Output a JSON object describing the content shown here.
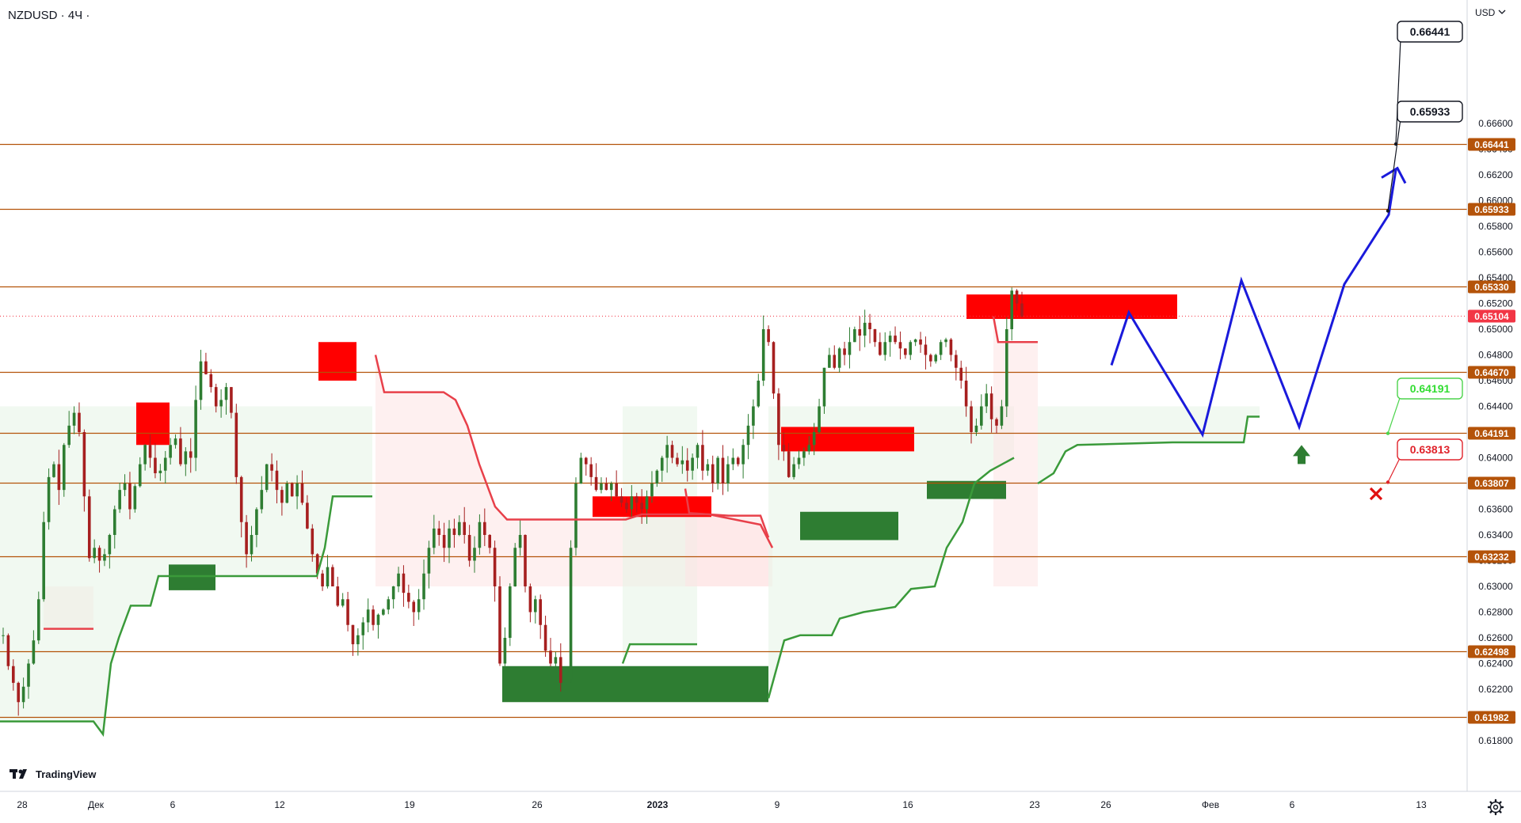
{
  "header": {
    "symbol": "NZDUSD · 4Ч ·"
  },
  "price_axis": {
    "currency": "USD",
    "currency_icon": "chevron-down-icon"
  },
  "brand": {
    "name": "TradingView",
    "icon": "tradingview-logo"
  },
  "toolbar": {
    "settings_icon": "gear-icon"
  },
  "colors": {
    "level_line": "#b45309",
    "bull_candle": "#2e7d32",
    "bear_candle": "#a61f1f",
    "supply_zone": "#ff0000",
    "demand_zone": "#2e7d32",
    "forecast_path": "#1a1adb",
    "trail_down": "#e8404a",
    "trail_up": "#3a9a3a",
    "current_price": "#f23645"
  },
  "chart_data": {
    "type": "candlestick",
    "ylim": [
      0.6172,
      0.6676
    ],
    "y_ticks": [
      "0.66600",
      "0.66400",
      "0.66200",
      "0.66000",
      "0.65800",
      "0.65600",
      "0.65400",
      "0.65200",
      "0.65000",
      "0.64800",
      "0.64600",
      "0.64400",
      "0.64200",
      "0.64000",
      "0.63800",
      "0.63600",
      "0.63400",
      "0.63200",
      "0.63000",
      "0.62800",
      "0.62600",
      "0.62400",
      "0.62200",
      "0.62000",
      "0.61800"
    ],
    "x_ticks": [
      {
        "label": "28",
        "bold": false
      },
      {
        "label": "Дек",
        "bold": false
      },
      {
        "label": "6",
        "bold": false
      },
      {
        "label": "12",
        "bold": false
      },
      {
        "label": "19",
        "bold": false
      },
      {
        "label": "26",
        "bold": false
      },
      {
        "label": "2023",
        "bold": true
      },
      {
        "label": "9",
        "bold": false
      },
      {
        "label": "16",
        "bold": false
      },
      {
        "label": "23",
        "bold": false
      },
      {
        "label": "26",
        "bold": false
      },
      {
        "label": "Фев",
        "bold": false
      },
      {
        "label": "6",
        "bold": false
      },
      {
        "label": "13",
        "bold": false
      }
    ],
    "levels": [
      "0.66441",
      "0.65933",
      "0.65330",
      "0.64670",
      "0.64191",
      "0.63807",
      "0.63232",
      "0.62498",
      "0.61982"
    ],
    "current_price": "0.65104",
    "callouts": [
      {
        "label": "0.66441",
        "style": "black"
      },
      {
        "label": "0.65933",
        "style": "black"
      },
      {
        "label": "0.64191",
        "style": "green"
      },
      {
        "label": "0.63813",
        "style": "red"
      }
    ],
    "price_path": [
      0.6262,
      0.6238,
      0.6225,
      0.621,
      0.6222,
      0.624,
      0.6258,
      0.629,
      0.635,
      0.6385,
      0.6395,
      0.6375,
      0.641,
      0.6425,
      0.6435,
      0.642,
      0.637,
      0.6322,
      0.633,
      0.632,
      0.6325,
      0.634,
      0.636,
      0.6375,
      0.638,
      0.636,
      0.6378,
      0.6395,
      0.641,
      0.64,
      0.6388,
      0.639,
      0.64,
      0.641,
      0.6415,
      0.6395,
      0.6405,
      0.64,
      0.6445,
      0.6475,
      0.6465,
      0.6455,
      0.644,
      0.6445,
      0.6455,
      0.6435,
      0.6385,
      0.635,
      0.6325,
      0.634,
      0.636,
      0.6375,
      0.6395,
      0.639,
      0.6375,
      0.6365,
      0.638,
      0.637,
      0.638,
      0.6365,
      0.6345,
      0.6325,
      0.631,
      0.63,
      0.6315,
      0.63,
      0.6285,
      0.629,
      0.627,
      0.6255,
      0.6262,
      0.6272,
      0.6282,
      0.627,
      0.6278,
      0.6282,
      0.629,
      0.63,
      0.631,
      0.6295,
      0.6288,
      0.628,
      0.629,
      0.631,
      0.633,
      0.6345,
      0.634,
      0.633,
      0.6345,
      0.634,
      0.635,
      0.634,
      0.632,
      0.633,
      0.635,
      0.634,
      0.633,
      0.63,
      0.624,
      0.626,
      0.63,
      0.633,
      0.634,
      0.63,
      0.628,
      0.629,
      0.627,
      0.625,
      0.624,
      0.6245,
      0.6225,
      0.6228,
      0.633,
      0.638,
      0.64,
      0.6395,
      0.6385,
      0.6375,
      0.638,
      0.6375,
      0.638,
      0.637,
      0.6365,
      0.636,
      0.637,
      0.6365,
      0.636,
      0.637,
      0.638,
      0.639,
      0.64,
      0.641,
      0.64,
      0.6395,
      0.6398,
      0.639,
      0.64,
      0.641,
      0.639,
      0.6395,
      0.638,
      0.64,
      0.638,
      0.6395,
      0.64,
      0.6395,
      0.641,
      0.6425,
      0.644,
      0.646,
      0.65,
      0.649,
      0.645,
      0.641,
      0.6405,
      0.6385,
      0.6395,
      0.64,
      0.6405,
      0.641,
      0.642,
      0.644,
      0.647,
      0.648,
      0.647,
      0.6485,
      0.648,
      0.649,
      0.65,
      0.6495,
      0.6505,
      0.65,
      0.649,
      0.648,
      0.649,
      0.6495,
      0.649,
      0.6485,
      0.648,
      0.649,
      0.6492,
      0.6488,
      0.648,
      0.6475,
      0.648,
      0.649,
      0.6492,
      0.648,
      0.647,
      0.646,
      0.644,
      0.642,
      0.6425,
      0.644,
      0.645,
      0.643,
      0.6425,
      0.644,
      0.65,
      0.653,
      0.652,
      0.651
    ],
    "supply_zones": [
      {
        "from": 0.641,
        "to": 0.6443
      },
      {
        "from": 0.646,
        "to": 0.649
      },
      {
        "from": 0.6354,
        "to": 0.637
      },
      {
        "from": 0.6405,
        "to": 0.6424
      },
      {
        "from": 0.6508,
        "to": 0.6527
      }
    ],
    "demand_zones": [
      {
        "from": 0.6297,
        "to": 0.6317
      },
      {
        "from": 0.621,
        "to": 0.6238
      },
      {
        "from": 0.6336,
        "to": 0.6358
      },
      {
        "from": 0.6368,
        "to": 0.6382
      }
    ],
    "forecast": [
      {
        "label": "0.65933",
        "point": "second-top"
      },
      {
        "label": "0.66441",
        "point": "target"
      }
    ]
  }
}
